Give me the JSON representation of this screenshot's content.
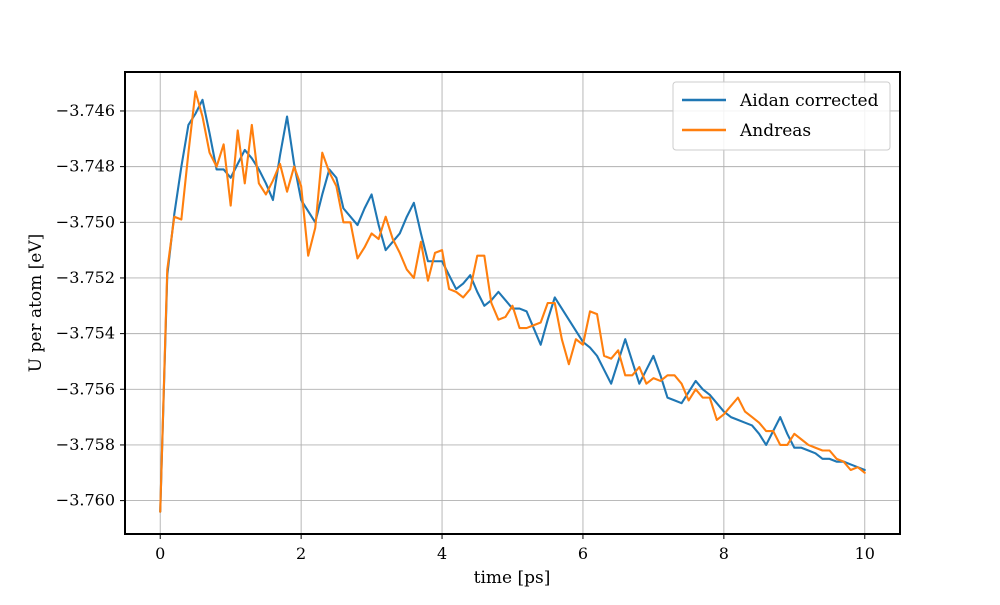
{
  "chart_data": {
    "type": "line",
    "title": "",
    "xlabel": "time [ps]",
    "ylabel": "U per atom [eV]",
    "xlim": [
      -0.5,
      10.5
    ],
    "ylim": [
      -3.7612,
      -3.7446
    ],
    "grid": true,
    "legend_position": "top-right",
    "x_ticks": [
      0,
      2,
      4,
      6,
      8,
      10
    ],
    "x_tick_labels": [
      "0",
      "2",
      "4",
      "6",
      "8",
      "10"
    ],
    "y_ticks": [
      -3.746,
      -3.748,
      -3.75,
      -3.752,
      -3.754,
      -3.756,
      -3.758,
      -3.76
    ],
    "y_tick_labels": [
      "−3.746",
      "−3.748",
      "−3.750",
      "−3.752",
      "−3.754",
      "−3.756",
      "−3.758",
      "−3.760"
    ],
    "x": [
      0.0,
      0.1,
      0.2,
      0.3,
      0.4,
      0.5,
      0.6,
      0.7,
      0.8,
      0.9,
      1.0,
      1.1,
      1.2,
      1.3,
      1.4,
      1.5,
      1.6,
      1.7,
      1.8,
      1.9,
      2.0,
      2.1,
      2.2,
      2.3,
      2.4,
      2.5,
      2.6,
      2.7,
      2.8,
      2.9,
      3.0,
      3.1,
      3.2,
      3.3,
      3.4,
      3.5,
      3.6,
      3.7,
      3.8,
      3.9,
      4.0,
      4.1,
      4.2,
      4.3,
      4.4,
      4.5,
      4.6,
      4.7,
      4.8,
      4.9,
      5.0,
      5.1,
      5.2,
      5.3,
      5.4,
      5.5,
      5.6,
      5.7,
      5.8,
      5.9,
      6.0,
      6.1,
      6.2,
      6.3,
      6.4,
      6.5,
      6.6,
      6.7,
      6.8,
      6.9,
      7.0,
      7.1,
      7.2,
      7.3,
      7.4,
      7.5,
      7.6,
      7.7,
      7.8,
      7.9,
      8.0,
      8.1,
      8.2,
      8.3,
      8.4,
      8.5,
      8.6,
      8.7,
      8.8,
      8.9,
      9.0,
      9.1,
      9.2,
      9.3,
      9.4,
      9.5,
      9.6,
      9.7,
      9.8,
      9.9,
      10.0
    ],
    "series": [
      {
        "name": "Aidan corrected",
        "color": "#1f77b4",
        "values": [
          -3.7604,
          -3.7519,
          -3.7497,
          -3.748,
          -3.7465,
          -3.7461,
          -3.7456,
          -3.7468,
          -3.7481,
          -3.7481,
          -3.7484,
          -3.7479,
          -3.7474,
          -3.7477,
          -3.7481,
          -3.7486,
          -3.7492,
          -3.7476,
          -3.7462,
          -3.7479,
          -3.7492,
          -3.7496,
          -3.75,
          -3.749,
          -3.7481,
          -3.7484,
          -3.7495,
          -3.7498,
          -3.7501,
          -3.7495,
          -3.749,
          -3.7501,
          -3.751,
          -3.7507,
          -3.7504,
          -3.7498,
          -3.7493,
          -3.7504,
          -3.7514,
          -3.7514,
          -3.7514,
          -3.7519,
          -3.7524,
          -3.7522,
          -3.7519,
          -3.7525,
          -3.753,
          -3.7528,
          -3.7525,
          -3.7528,
          -3.7531,
          -3.7531,
          -3.7532,
          -3.7538,
          -3.7544,
          -3.7535,
          -3.7527,
          -3.7531,
          -3.7535,
          -3.7539,
          -3.7543,
          -3.7545,
          -3.7548,
          -3.7553,
          -3.7558,
          -3.755,
          -3.7542,
          -3.755,
          -3.7558,
          -3.7553,
          -3.7548,
          -3.7555,
          -3.7563,
          -3.7564,
          -3.7565,
          -3.7561,
          -3.7557,
          -3.756,
          -3.7562,
          -3.7565,
          -3.7568,
          -3.757,
          -3.7571,
          -3.7572,
          -3.7573,
          -3.7576,
          -3.758,
          -3.7575,
          -3.757,
          -3.7576,
          -3.7581,
          -3.7581,
          -3.7582,
          -3.7583,
          -3.7585,
          -3.7585,
          -3.7586,
          -3.7586,
          -3.7587,
          -3.7588,
          -3.7589
        ]
      },
      {
        "name": "Andreas",
        "color": "#ff7f0e",
        "values": [
          -3.7604,
          -3.7517,
          -3.7498,
          -3.7499,
          -3.7475,
          -3.7453,
          -3.7462,
          -3.7475,
          -3.748,
          -3.7472,
          -3.7494,
          -3.7467,
          -3.7486,
          -3.7465,
          -3.7486,
          -3.749,
          -3.7485,
          -3.7479,
          -3.7489,
          -3.748,
          -3.7487,
          -3.7512,
          -3.7502,
          -3.7475,
          -3.7482,
          -3.7487,
          -3.75,
          -3.75,
          -3.7513,
          -3.7509,
          -3.7504,
          -3.7506,
          -3.7498,
          -3.7506,
          -3.7511,
          -3.7517,
          -3.752,
          -3.7507,
          -3.7521,
          -3.7511,
          -3.751,
          -3.7524,
          -3.7525,
          -3.7527,
          -3.7524,
          -3.7512,
          -3.7512,
          -3.7529,
          -3.7535,
          -3.7534,
          -3.753,
          -3.7538,
          -3.7538,
          -3.7537,
          -3.7536,
          -3.7529,
          -3.7529,
          -3.7542,
          -3.7551,
          -3.7542,
          -3.7544,
          -3.7532,
          -3.7533,
          -3.7548,
          -3.7549,
          -3.7546,
          -3.7555,
          -3.7555,
          -3.7552,
          -3.7558,
          -3.7556,
          -3.7557,
          -3.7555,
          -3.7555,
          -3.7558,
          -3.7564,
          -3.756,
          -3.7563,
          -3.7563,
          -3.7571,
          -3.7569,
          -3.7566,
          -3.7563,
          -3.7568,
          -3.757,
          -3.7572,
          -3.7575,
          -3.7575,
          -3.758,
          -3.758,
          -3.7576,
          -3.7578,
          -3.758,
          -3.7581,
          -3.7582,
          -3.7582,
          -3.7585,
          -3.7586,
          -3.7589,
          -3.7588,
          -3.759
        ]
      }
    ]
  }
}
